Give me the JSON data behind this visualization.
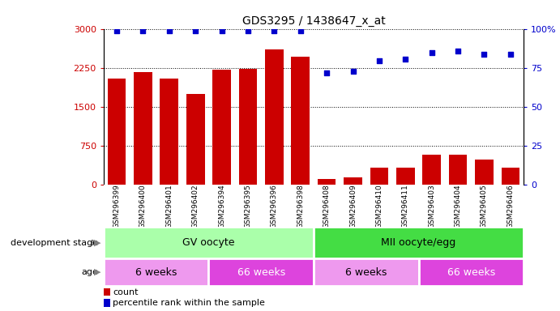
{
  "title": "GDS3295 / 1438647_x_at",
  "samples": [
    "GSM296399",
    "GSM296400",
    "GSM296401",
    "GSM296402",
    "GSM296394",
    "GSM296395",
    "GSM296396",
    "GSM296398",
    "GSM296408",
    "GSM296409",
    "GSM296410",
    "GSM296411",
    "GSM296403",
    "GSM296404",
    "GSM296405",
    "GSM296406"
  ],
  "counts": [
    2050,
    2175,
    2050,
    1750,
    2230,
    2240,
    2620,
    2480,
    120,
    155,
    340,
    330,
    590,
    590,
    490,
    340
  ],
  "percentiles": [
    99,
    99,
    99,
    99,
    99,
    99,
    99,
    99,
    72,
    73,
    80,
    81,
    85,
    86,
    84,
    84
  ],
  "bar_color": "#cc0000",
  "dot_color": "#0000cc",
  "ylim_left": [
    0,
    3000
  ],
  "ylim_right": [
    0,
    100
  ],
  "yticks_left": [
    0,
    750,
    1500,
    2250,
    3000
  ],
  "yticks_right": [
    0,
    25,
    50,
    75,
    100
  ],
  "yticklabels_right": [
    "0",
    "25",
    "50",
    "75",
    "100%"
  ],
  "development_stage_groups": [
    {
      "label": "GV oocyte",
      "start": 0,
      "end": 8,
      "color": "#aaffaa"
    },
    {
      "label": "MII oocyte/egg",
      "start": 8,
      "end": 16,
      "color": "#44dd44"
    }
  ],
  "age_groups": [
    {
      "label": "6 weeks",
      "start": 0,
      "end": 4,
      "color": "#ee99ee"
    },
    {
      "label": "66 weeks",
      "start": 4,
      "end": 8,
      "color": "#dd44dd"
    },
    {
      "label": "6 weeks",
      "start": 8,
      "end": 12,
      "color": "#ee99ee"
    },
    {
      "label": "66 weeks",
      "start": 12,
      "end": 16,
      "color": "#dd44dd"
    }
  ],
  "legend_count_label": "count",
  "legend_pct_label": "percentile rank within the sample",
  "dev_stage_label": "development stage",
  "age_label": "age",
  "tick_bg_color": "#cccccc",
  "age_text_color_light": "#000000",
  "age_text_color_dark": "#ffffff"
}
